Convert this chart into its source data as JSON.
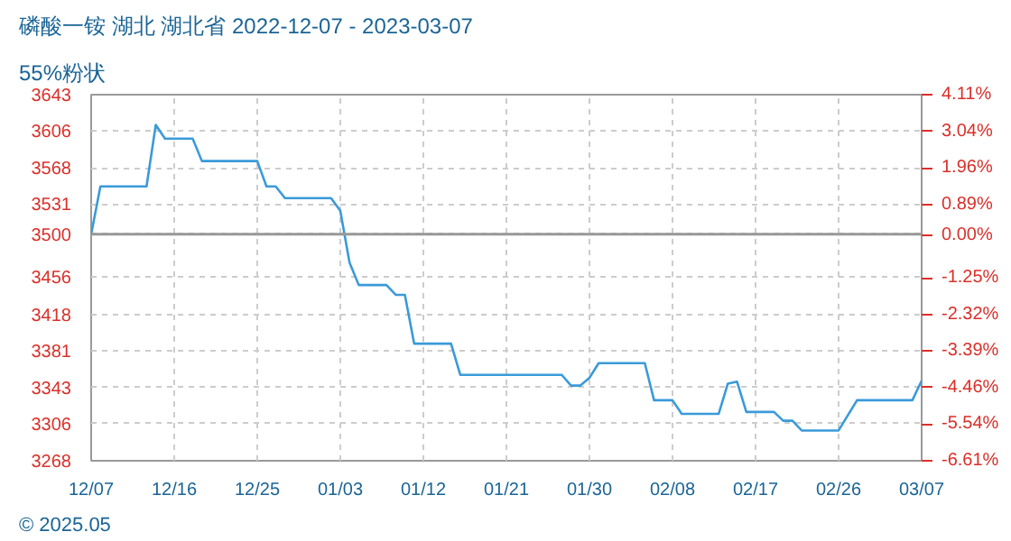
{
  "chart_data": {
    "type": "line",
    "title": "磷酸一铵 湖北 湖北省 2022-12-07 - 2023-03-07",
    "subtitle": "55%粉状",
    "annotations": [
      "© 2025.05"
    ],
    "x": [
      "2022-12-07",
      "2022-12-08",
      "2022-12-13",
      "2022-12-14",
      "2022-12-15",
      "2022-12-18",
      "2022-12-19",
      "2022-12-25",
      "2022-12-26",
      "2022-12-27",
      "2022-12-28",
      "2023-01-02",
      "2023-01-03",
      "2023-01-04",
      "2023-01-05",
      "2023-01-08",
      "2023-01-09",
      "2023-01-10",
      "2023-01-11",
      "2023-01-15",
      "2023-01-16",
      "2023-01-27",
      "2023-01-28",
      "2023-01-29",
      "2023-01-30",
      "2023-01-31",
      "2023-02-05",
      "2023-02-06",
      "2023-02-08",
      "2023-02-09",
      "2023-02-13",
      "2023-02-14",
      "2023-02-15",
      "2023-02-16",
      "2023-02-19",
      "2023-02-20",
      "2023-02-21",
      "2023-02-22",
      "2023-02-26",
      "2023-02-28",
      "2023-03-06",
      "2023-03-07"
    ],
    "series": [
      {
        "color": "#3a9ad9",
        "values": [
          3500,
          3549,
          3549,
          3612,
          3598,
          3598,
          3575,
          3575,
          3549,
          3549,
          3537,
          3537,
          3524,
          3471,
          3448,
          3448,
          3438,
          3438,
          3388,
          3388,
          3356,
          3356,
          3345,
          3345,
          3353,
          3368,
          3368,
          3330,
          3330,
          3316,
          3316,
          3347,
          3349,
          3318,
          3318,
          3309,
          3309,
          3299,
          3299,
          3330,
          3330,
          3350
        ]
      }
    ],
    "xlim": [
      "2022-12-07",
      "2023-03-07"
    ],
    "xticks": [
      {
        "value": "2022-12-07",
        "label": "12/07"
      },
      {
        "value": "2022-12-16",
        "label": "12/16"
      },
      {
        "value": "2022-12-25",
        "label": "12/25"
      },
      {
        "value": "2023-01-03",
        "label": "01/03"
      },
      {
        "value": "2023-01-12",
        "label": "01/12"
      },
      {
        "value": "2023-01-21",
        "label": "01/21"
      },
      {
        "value": "2023-01-30",
        "label": "01/30"
      },
      {
        "value": "2023-02-08",
        "label": "02/08"
      },
      {
        "value": "2023-02-17",
        "label": "02/17"
      },
      {
        "value": "2023-02-26",
        "label": "02/26"
      },
      {
        "value": "2023-03-07",
        "label": "03/07"
      }
    ],
    "ylim": [
      3268,
      3643
    ],
    "yticks": [
      3643,
      3606,
      3568,
      3531,
      3500,
      3456,
      3418,
      3381,
      3343,
      3306,
      3268
    ],
    "y2lim": [
      -6.61,
      4.11
    ],
    "y2ticks": [
      {
        "value": 4.11,
        "label": "4.11%"
      },
      {
        "value": 3.04,
        "label": "3.04%"
      },
      {
        "value": 1.96,
        "label": "1.96%"
      },
      {
        "value": 0.89,
        "label": "0.89%"
      },
      {
        "value": 0,
        "label": "0.00%"
      },
      {
        "value": -1.25,
        "label": "-1.25%"
      },
      {
        "value": -2.32,
        "label": "-2.32%"
      },
      {
        "value": -3.39,
        "label": "-3.39%"
      },
      {
        "value": -4.46,
        "label": "-4.46%"
      },
      {
        "value": -5.54,
        "label": "-5.54%"
      },
      {
        "value": -6.61,
        "label": "-6.61%"
      }
    ],
    "ref_lines": [
      {
        "axis": "y",
        "value": 3500,
        "color": "#999999",
        "line_style": "solid"
      }
    ],
    "grid": true,
    "line_style": "solid"
  }
}
